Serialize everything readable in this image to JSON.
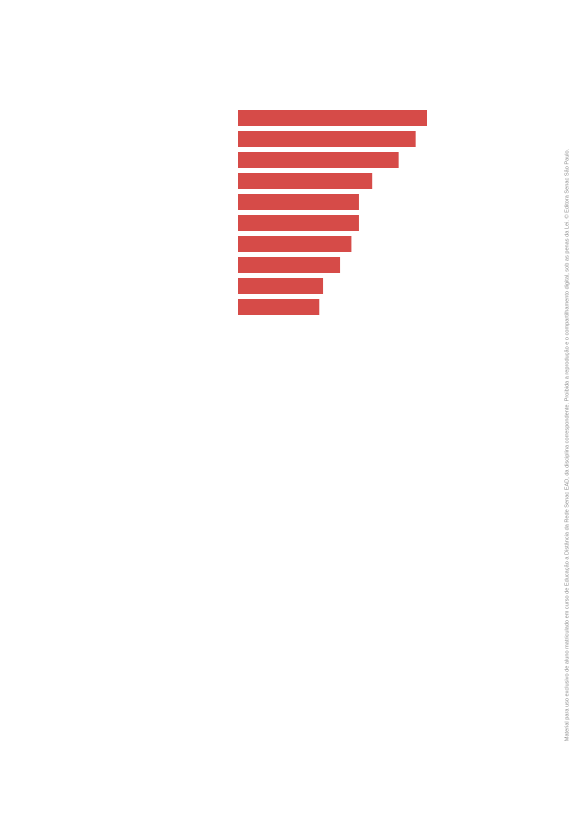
{
  "chart_data": {
    "type": "bar",
    "orientation": "horizontal",
    "categories": [
      "",
      "",
      "",
      "",
      "",
      "",
      "",
      "",
      "",
      ""
    ],
    "values": [
      100,
      94,
      85,
      71,
      64,
      64,
      60,
      54,
      45,
      43
    ],
    "bar_color": "#d64b48",
    "xlim": [
      0,
      100
    ],
    "grid": false,
    "legend": "none"
  },
  "footer": {
    "side_note": "Material para uso exclusivo de aluno matriculado em curso de Educação a Distância da Rede Senac EAD, da disciplina correspondente. Proibida a reprodução e o compartilhamento digital, sob as penas da Lei. © Editora Senac São Paulo."
  }
}
